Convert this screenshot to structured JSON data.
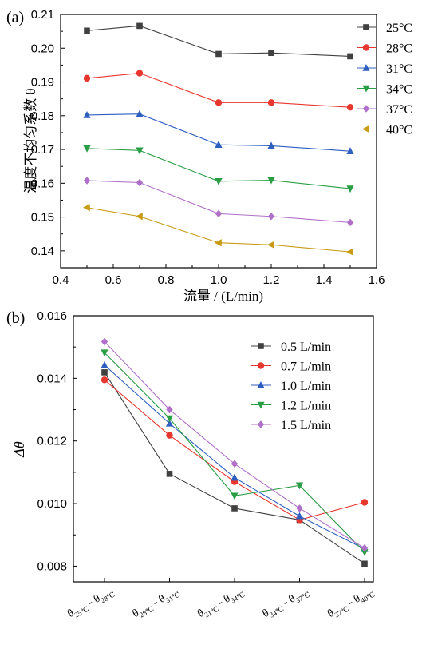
{
  "chart_data": [
    {
      "panel_label": "(a)",
      "type": "line",
      "xlabel": "流量 / (L/min)",
      "ylabel": "温度不均匀系数 θ",
      "xlim": [
        0.4,
        1.6
      ],
      "ylim": [
        0.135,
        0.21
      ],
      "xticks": [
        "0.4",
        "0.6",
        "0.8",
        "1.0",
        "1.2",
        "1.4",
        "1.6"
      ],
      "yticks": [
        "0.14",
        "0.15",
        "0.16",
        "0.17",
        "0.18",
        "0.19",
        "0.20",
        "0.21"
      ],
      "legend_position": "top-right",
      "x": [
        0.5,
        0.7,
        1.0,
        1.2,
        1.5
      ],
      "series": [
        {
          "name": "25°C",
          "color": "#404040",
          "marker": "square",
          "values": [
            0.2052,
            0.2066,
            0.1983,
            0.1986,
            0.1976
          ]
        },
        {
          "name": "28°C",
          "color": "#e8372e",
          "marker": "circle",
          "values": [
            0.1911,
            0.1926,
            0.1839,
            0.1839,
            0.1825
          ]
        },
        {
          "name": "31°C",
          "color": "#2e5fc0",
          "marker": "triangle-up",
          "values": [
            0.1802,
            0.1805,
            0.1714,
            0.1711,
            0.1695
          ]
        },
        {
          "name": "34°C",
          "color": "#2a9e45",
          "marker": "triangle-down",
          "values": [
            0.1703,
            0.1697,
            0.1606,
            0.1609,
            0.1584
          ]
        },
        {
          "name": "37°C",
          "color": "#b06fc8",
          "marker": "diamond",
          "values": [
            0.1608,
            0.1602,
            0.151,
            0.1502,
            0.1484
          ]
        },
        {
          "name": "40°C",
          "color": "#c89b14",
          "marker": "triangle-left",
          "values": [
            0.1528,
            0.1502,
            0.1424,
            0.1418,
            0.1397
          ]
        }
      ]
    },
    {
      "panel_label": "(b)",
      "type": "line",
      "xlabel": "",
      "ylabel": "Δθ",
      "ylim": [
        0.0075,
        0.016
      ],
      "yticks": [
        "0.008",
        "0.010",
        "0.012",
        "0.014",
        "0.016"
      ],
      "legend_position": "top-right",
      "categories": [
        {
          "t1": "25℃",
          "t2": "28℃"
        },
        {
          "t1": "28℃",
          "t2": "31℃"
        },
        {
          "t1": "31℃",
          "t2": "34℃"
        },
        {
          "t1": "34℃",
          "t2": "37℃"
        },
        {
          "t1": "37℃",
          "t2": "40℃"
        }
      ],
      "series": [
        {
          "name": "0.5 L/min",
          "color": "#404040",
          "marker": "square",
          "values": [
            0.01419,
            0.01095,
            0.00985,
            0.00948,
            0.00808
          ]
        },
        {
          "name": "0.7 L/min",
          "color": "#e8372e",
          "marker": "circle",
          "values": [
            0.01395,
            0.01218,
            0.0107,
            0.00948,
            0.01004
          ]
        },
        {
          "name": "1.0 L/min",
          "color": "#2e5fc0",
          "marker": "triangle-up",
          "values": [
            0.01442,
            0.01256,
            0.01083,
            0.0096,
            0.00855
          ]
        },
        {
          "name": "1.2 L/min",
          "color": "#2a9e45",
          "marker": "triangle-down",
          "values": [
            0.01482,
            0.01272,
            0.01025,
            0.01058,
            0.00845
          ]
        },
        {
          "name": "1.5 L/min",
          "color": "#b06fc8",
          "marker": "diamond",
          "values": [
            0.01517,
            0.013,
            0.01127,
            0.00985,
            0.00858
          ]
        }
      ]
    }
  ]
}
